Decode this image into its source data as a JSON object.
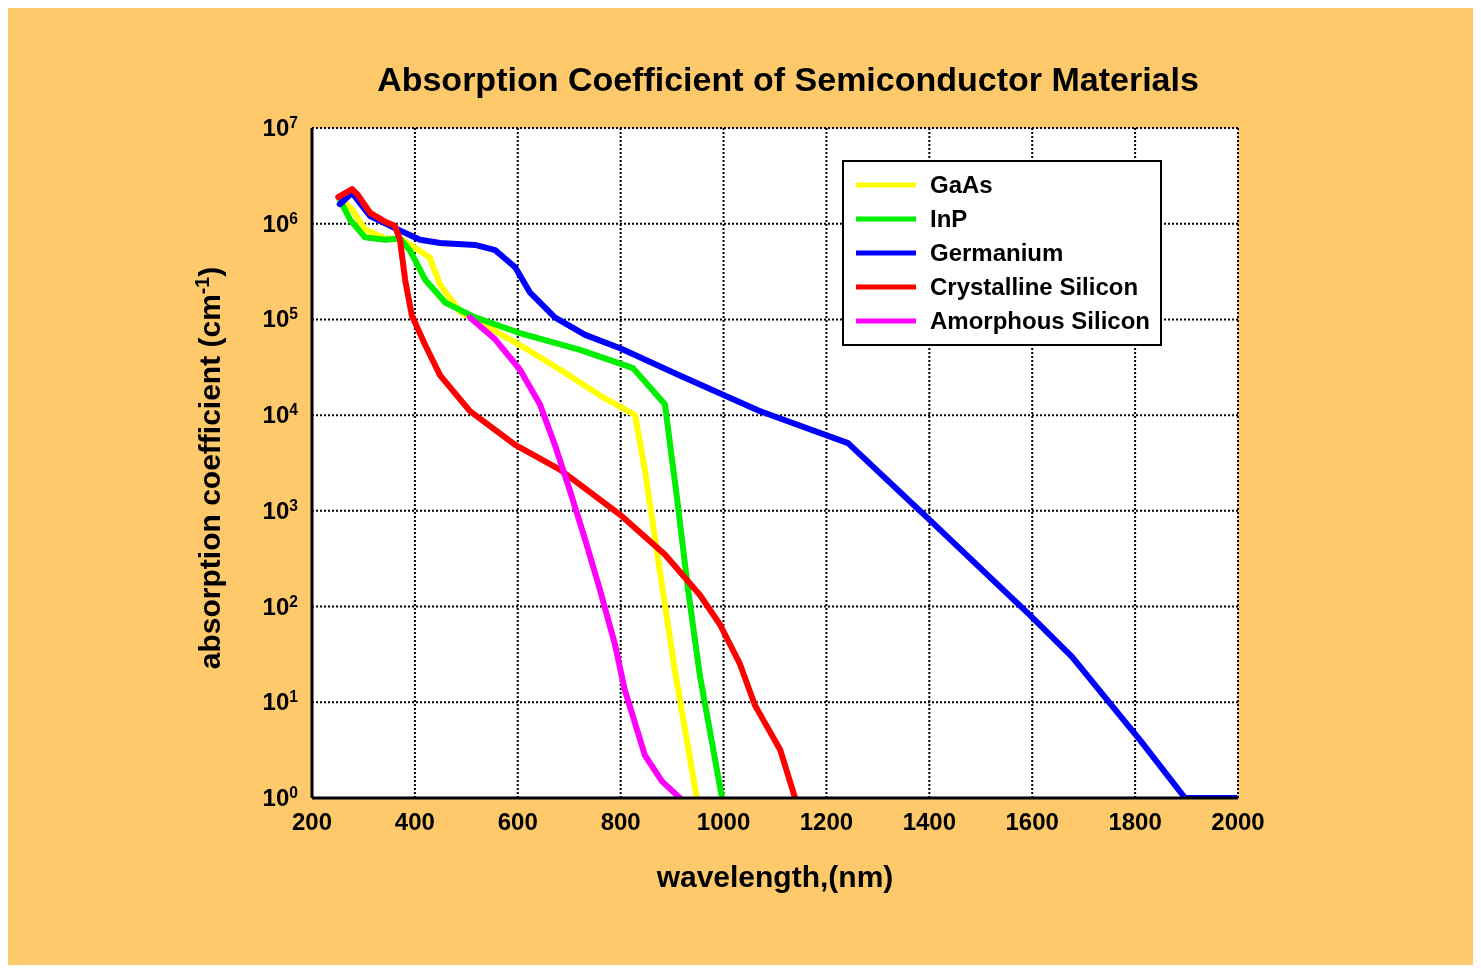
{
  "chart_data": {
    "type": "line",
    "title": "Absorption Coefficient of Semiconductor Materials",
    "xlabel": "wavelength,(nm)",
    "ylabel": "absorption coefficient (cm$^{-1}$)",
    "log": "y",
    "grid": true,
    "legend": "top right",
    "marker": "none",
    "line_style": "solid",
    "xlim": [
      200,
      2000
    ],
    "xticks": [
      200,
      400,
      600,
      800,
      1000,
      1200,
      1400,
      1600,
      1800,
      2000
    ],
    "ylim": [
      1,
      10000000
    ],
    "yticks": [
      {
        "value": 1,
        "label": "10$^{0}$"
      },
      {
        "value": 10,
        "label": "10$^{1}$"
      },
      {
        "value": 100,
        "label": "10$^{2}$"
      },
      {
        "value": 1000,
        "label": "10$^{3}$"
      },
      {
        "value": 10000,
        "label": "10$^{4}$"
      },
      {
        "value": 100000,
        "label": "10$^{5}$"
      },
      {
        "value": 1000000,
        "label": "10$^{6}$"
      },
      {
        "value": 10000000,
        "label": "10$^{7}$"
      }
    ],
    "series": [
      {
        "name": "GaAs",
        "color": "#ffff00",
        "x": [
          254,
          278,
          303,
          342,
          371,
          400,
          429,
          449,
          488,
          536,
          604,
          682,
          760,
          828,
          847,
          876,
          905,
          948
        ],
        "values": [
          1900000,
          1400000,
          870000,
          700000,
          700000,
          560000,
          440000,
          230000,
          120000,
          87000,
          54000,
          30000,
          16000,
          10000,
          2700,
          240,
          22,
          1
        ]
      },
      {
        "name": "InP",
        "color": "#00ee00",
        "x": [
          254,
          274,
          303,
          342,
          371,
          390,
          420,
          459,
          517,
          604,
          721,
          789,
          824,
          886,
          910,
          931,
          954,
          997
        ],
        "values": [
          1800000,
          1100000,
          720000,
          680000,
          700000,
          530000,
          260000,
          150000,
          105000,
          72000,
          48000,
          36000,
          31000,
          13000,
          1300,
          150,
          19,
          1
        ]
      },
      {
        "name": "Germanium",
        "color": "#0000ff",
        "x": [
          254,
          278,
          313,
          361,
          410,
          449,
          517,
          556,
          595,
          624,
          672,
          731,
          799,
          915,
          1071,
          1242,
          1401,
          1596,
          1677,
          1810,
          1897,
          1996
        ],
        "values": [
          1600000,
          2100000,
          1200000,
          900000,
          680000,
          630000,
          600000,
          530000,
          350000,
          190000,
          105000,
          69000,
          50000,
          26000,
          11000,
          5100,
          800,
          81,
          30,
          4,
          1,
          1
        ]
      },
      {
        "name": "Crystalline Silicon",
        "color": "#ff0000",
        "x": [
          251,
          278,
          289,
          313,
          342,
          361,
          371,
          381,
          394,
          420,
          449,
          507,
          595,
          682,
          799,
          886,
          954,
          993,
          1032,
          1061,
          1110,
          1139
        ],
        "values": [
          1900000,
          2300000,
          2000000,
          1300000,
          1050000,
          950000,
          680000,
          260000,
          110000,
          54000,
          26000,
          11000,
          4900,
          2700,
          910,
          350,
          132,
          65,
          25,
          9.3,
          3.2,
          1
        ]
      },
      {
        "name": "Amorphous Silicon",
        "color": "#ff00ff",
        "x": [
          507,
          556,
          604,
          643,
          672,
          701,
          731,
          760,
          789,
          808,
          847,
          880,
          915
        ],
        "values": [
          105000,
          62000,
          30000,
          13000,
          4900,
          1650,
          500,
          148,
          40,
          13.5,
          2.8,
          1.5,
          1
        ]
      }
    ]
  }
}
